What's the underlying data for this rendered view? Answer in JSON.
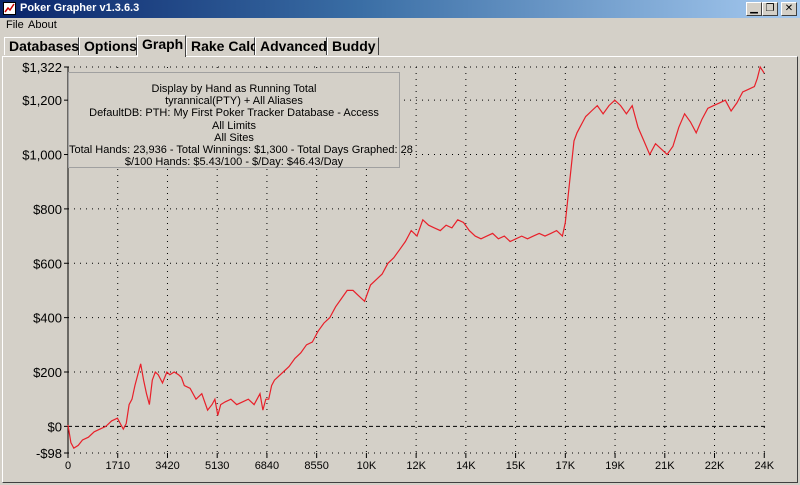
{
  "window": {
    "title": "Poker Grapher v1.3.6.3",
    "minimize_icon": "minimize-icon",
    "restore_icon": "restore-icon",
    "close_icon": "close-icon"
  },
  "menu": {
    "items": [
      "File",
      "About"
    ]
  },
  "tabs": [
    {
      "label": "Databases",
      "active": false
    },
    {
      "label": "Options",
      "active": false
    },
    {
      "label": "Graph",
      "active": true
    },
    {
      "label": "Rake Calc",
      "active": false
    },
    {
      "label": "Advanced",
      "active": false
    },
    {
      "label": "Buddy",
      "active": false
    }
  ],
  "info": {
    "lines": [
      "Display by Hand as Running Total",
      "tyrannical(PTY) + All Aliases",
      "DefaultDB: PTH: My First Poker Tracker Database  - Access",
      "All Limits",
      "All Sites",
      "Total Hands: 23,936 - Total Winnings: $1,300 - Total Days Graphed: 28",
      "$/100 Hands: $5.43/100 - $/Day: $46.43/Day"
    ]
  },
  "colors": {
    "line": "#e8202a",
    "background": "#d4d0c8",
    "grid": "#000000",
    "title_bar": "#0a246a"
  },
  "chart_data": {
    "type": "line",
    "title": "",
    "xlabel": "",
    "ylabel": "",
    "xlim": [
      0,
      24000
    ],
    "ylim": [
      -98,
      1322
    ],
    "grid": true,
    "x_ticks": [
      {
        "value": 0,
        "label": "0"
      },
      {
        "value": 1710,
        "label": "1710"
      },
      {
        "value": 3420,
        "label": "3420"
      },
      {
        "value": 5130,
        "label": "5130"
      },
      {
        "value": 6840,
        "label": "6840"
      },
      {
        "value": 8550,
        "label": "8550"
      },
      {
        "value": 10260,
        "label": "10K"
      },
      {
        "value": 11970,
        "label": "12K"
      },
      {
        "value": 13680,
        "label": "14K"
      },
      {
        "value": 15390,
        "label": "15K"
      },
      {
        "value": 17100,
        "label": "17K"
      },
      {
        "value": 18810,
        "label": "19K"
      },
      {
        "value": 20520,
        "label": "21K"
      },
      {
        "value": 22230,
        "label": "22K"
      },
      {
        "value": 23940,
        "label": "24K"
      }
    ],
    "y_ticks": [
      {
        "value": 1322,
        "label": "$1,322"
      },
      {
        "value": 1200,
        "label": "$1,200"
      },
      {
        "value": 1000,
        "label": "$1,000"
      },
      {
        "value": 800,
        "label": "$800"
      },
      {
        "value": 600,
        "label": "$600"
      },
      {
        "value": 400,
        "label": "$400"
      },
      {
        "value": 200,
        "label": "$200"
      },
      {
        "value": 0,
        "label": "$0"
      },
      {
        "value": -98,
        "label": "-$98"
      }
    ],
    "series": [
      {
        "x": [
          0,
          100,
          200,
          350,
          500,
          700,
          900,
          1100,
          1300,
          1500,
          1700,
          1900,
          2000,
          2100,
          2200,
          2300,
          2400,
          2500,
          2600,
          2700,
          2800,
          2900,
          3000,
          3100,
          3250,
          3400,
          3500,
          3650,
          3800,
          3900,
          4000,
          4200,
          4400,
          4600,
          4800,
          4950,
          5050,
          5150,
          5250,
          5400,
          5600,
          5800,
          6000,
          6200,
          6400,
          6600,
          6700,
          6800,
          6900,
          7000,
          7100,
          7200,
          7400,
          7600,
          7800,
          8000,
          8200,
          8400,
          8600,
          8800,
          9000,
          9200,
          9400,
          9600,
          9800,
          10000,
          10200,
          10400,
          10600,
          10800,
          11000,
          11200,
          11400,
          11600,
          11800,
          12000,
          12200,
          12400,
          12600,
          12800,
          13000,
          13200,
          13400,
          13600,
          13800,
          14000,
          14200,
          14400,
          14600,
          14800,
          15000,
          15200,
          15400,
          15600,
          15800,
          16000,
          16200,
          16400,
          16600,
          16800,
          17000,
          17100,
          17200,
          17300,
          17400,
          17500,
          17600,
          17700,
          17800,
          17900,
          18000,
          18200,
          18400,
          18600,
          18800,
          19000,
          19200,
          19400,
          19600,
          19800,
          20000,
          20200,
          20400,
          20600,
          20800,
          21000,
          21200,
          21400,
          21600,
          21800,
          22000,
          22200,
          22400,
          22600,
          22800,
          23000,
          23200,
          23400,
          23600,
          23700,
          23800,
          23936
        ],
        "y": [
          5,
          -60,
          -80,
          -70,
          -50,
          -40,
          -20,
          -10,
          0,
          20,
          30,
          -10,
          10,
          80,
          100,
          150,
          190,
          230,
          170,
          120,
          80,
          170,
          200,
          190,
          160,
          200,
          190,
          200,
          190,
          180,
          150,
          140,
          100,
          120,
          60,
          80,
          100,
          40,
          80,
          90,
          100,
          80,
          90,
          100,
          80,
          120,
          60,
          100,
          100,
          150,
          170,
          180,
          200,
          220,
          250,
          270,
          300,
          310,
          350,
          380,
          400,
          440,
          470,
          500,
          500,
          480,
          460,
          520,
          540,
          560,
          600,
          620,
          650,
          680,
          720,
          700,
          760,
          740,
          730,
          720,
          740,
          730,
          760,
          750,
          720,
          700,
          690,
          700,
          710,
          690,
          700,
          680,
          690,
          700,
          690,
          700,
          710,
          700,
          710,
          720,
          700,
          750,
          850,
          950,
          1050,
          1080,
          1100,
          1120,
          1140,
          1150,
          1160,
          1180,
          1150,
          1180,
          1200,
          1180,
          1150,
          1180,
          1100,
          1050,
          1000,
          1040,
          1020,
          1000,
          1030,
          1100,
          1150,
          1120,
          1080,
          1130,
          1170,
          1180,
          1190,
          1200,
          1160,
          1190,
          1230,
          1240,
          1250,
          1280,
          1322,
          1300
        ]
      }
    ]
  }
}
